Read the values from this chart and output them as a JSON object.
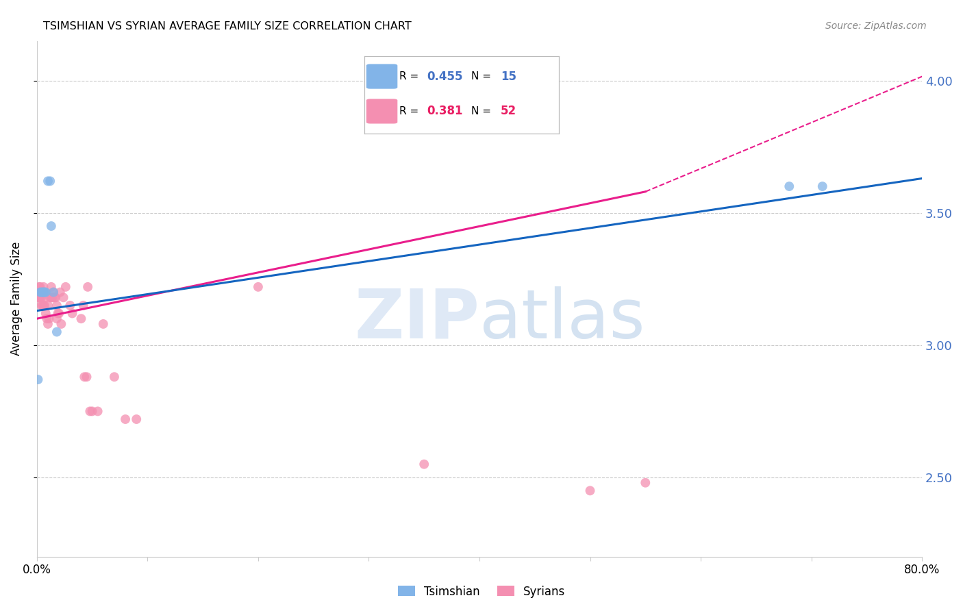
{
  "title": "TSIMSHIAN VS SYRIAN AVERAGE FAMILY SIZE CORRELATION CHART",
  "source": "Source: ZipAtlas.com",
  "ylabel": "Average Family Size",
  "right_yticks": [
    2.5,
    3.0,
    3.5,
    4.0
  ],
  "tsimshian_scatter": {
    "x": [
      0.001,
      0.003,
      0.004,
      0.005,
      0.006,
      0.006,
      0.007,
      0.008,
      0.01,
      0.012,
      0.013,
      0.015,
      0.018,
      0.68,
      0.71
    ],
    "y": [
      2.87,
      3.2,
      3.2,
      3.2,
      3.2,
      3.2,
      3.2,
      3.2,
      3.62,
      3.62,
      3.45,
      3.2,
      3.05,
      3.6,
      3.6
    ],
    "color": "#82b4e8",
    "size": 100,
    "zorder": 4
  },
  "syrians_scatter": {
    "x": [
      0.001,
      0.002,
      0.002,
      0.003,
      0.003,
      0.004,
      0.004,
      0.005,
      0.005,
      0.006,
      0.006,
      0.007,
      0.007,
      0.008,
      0.008,
      0.009,
      0.01,
      0.01,
      0.011,
      0.012,
      0.013,
      0.013,
      0.014,
      0.015,
      0.016,
      0.017,
      0.018,
      0.018,
      0.019,
      0.02,
      0.021,
      0.022,
      0.024,
      0.026,
      0.03,
      0.032,
      0.04,
      0.042,
      0.043,
      0.045,
      0.046,
      0.048,
      0.05,
      0.055,
      0.06,
      0.07,
      0.08,
      0.09,
      0.2,
      0.35,
      0.5,
      0.55
    ],
    "y": [
      3.18,
      3.22,
      3.18,
      3.22,
      3.18,
      3.18,
      3.15,
      3.2,
      3.15,
      3.22,
      3.15,
      3.15,
      3.2,
      3.18,
      3.12,
      3.1,
      3.15,
      3.08,
      3.1,
      3.18,
      3.22,
      3.18,
      3.18,
      3.2,
      3.18,
      3.18,
      3.15,
      3.1,
      3.12,
      3.12,
      3.2,
      3.08,
      3.18,
      3.22,
      3.15,
      3.12,
      3.1,
      3.15,
      2.88,
      2.88,
      3.22,
      2.75,
      2.75,
      2.75,
      3.08,
      2.88,
      2.72,
      2.72,
      3.22,
      2.55,
      2.45,
      2.48
    ],
    "color": "#f48fb1",
    "size": 100,
    "zorder": 3
  },
  "blue_trendline": {
    "x": [
      0.0,
      0.8
    ],
    "y": [
      3.13,
      3.63
    ],
    "color": "#1565c0",
    "linewidth": 2.2
  },
  "pink_trendline_solid": {
    "x": [
      0.0,
      0.55
    ],
    "y": [
      3.1,
      3.58
    ],
    "color": "#e91e8c",
    "linewidth": 2.2
  },
  "pink_trendline_dashed": {
    "x": [
      0.55,
      0.82
    ],
    "y": [
      3.58,
      4.05
    ],
    "color": "#e91e8c",
    "linewidth": 1.5,
    "linestyle": "--"
  },
  "xlim": [
    0.0,
    0.8
  ],
  "ylim": [
    2.2,
    4.15
  ],
  "background_color": "#ffffff",
  "grid_color": "#cccccc",
  "title_fontsize": 12,
  "ytick_color": "#4472c4",
  "legend_box": {
    "blue_color": "#82b4e8",
    "pink_color": "#f48fb1",
    "r_blue": "0.455",
    "n_blue": "15",
    "r_pink": "0.381",
    "n_pink": "52",
    "value_color_blue": "#4472c4",
    "value_color_pink": "#e91e63"
  }
}
